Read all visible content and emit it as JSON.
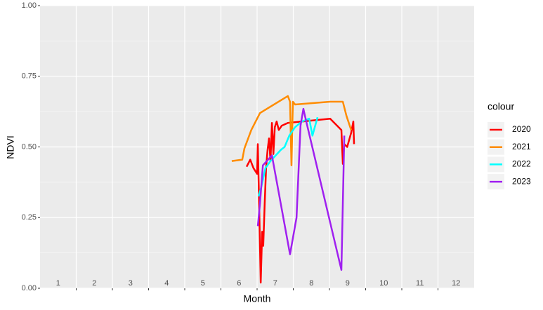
{
  "chart_data": {
    "type": "line",
    "x_label": "Month",
    "y_label": "NDVI",
    "legend_title": "colour",
    "xlim": [
      0.5,
      12.5
    ],
    "xticks": [
      1,
      2,
      3,
      4,
      5,
      6,
      7,
      8,
      9,
      10,
      11,
      12
    ],
    "xgrid": [
      1.5,
      2.5,
      3.5,
      4.5,
      5.5,
      6.5,
      7.5,
      8.5,
      9.5,
      10.5,
      11.5
    ],
    "ylim": [
      0,
      1
    ],
    "yticks": [
      {
        "value": 0,
        "label": "0.00"
      },
      {
        "value": 0.25,
        "label": "0.25"
      },
      {
        "value": 0.5,
        "label": "0.50"
      },
      {
        "value": 0.75,
        "label": "0.75"
      },
      {
        "value": 1,
        "label": "1.00"
      }
    ],
    "yminor": [
      0.125,
      0.375,
      0.625,
      0.875
    ],
    "grid": true,
    "series": [
      {
        "name": "2020",
        "color": "#ff0000",
        "x": [
          6.21,
          6.31,
          6.4,
          6.5,
          6.52,
          6.56,
          6.6,
          6.64,
          6.67,
          6.71,
          6.75,
          6.79,
          6.83,
          6.87,
          6.91,
          6.95,
          6.99,
          7.04,
          7.1,
          7.18,
          7.35,
          7.74,
          8.52,
          8.83,
          8.87,
          8.91,
          8.99,
          9.1,
          9.16,
          9.18
        ],
        "values": [
          0.43,
          0.455,
          0.425,
          0.405,
          0.51,
          0.275,
          0.02,
          0.2,
          0.15,
          0.3,
          0.43,
          0.49,
          0.53,
          0.45,
          0.585,
          0.475,
          0.57,
          0.59,
          0.56,
          0.575,
          0.585,
          0.59,
          0.6,
          0.56,
          0.44,
          0.51,
          0.5,
          0.55,
          0.59,
          0.51
        ]
      },
      {
        "name": "2021",
        "color": "#ff8c00",
        "x": [
          5.8,
          6.09,
          6.15,
          6.34,
          6.58,
          7.35,
          7.41,
          7.45,
          7.49,
          7.55,
          8.52,
          8.87,
          8.97,
          9.1
        ],
        "values": [
          0.45,
          0.455,
          0.495,
          0.56,
          0.62,
          0.68,
          0.66,
          0.435,
          0.66,
          0.65,
          0.66,
          0.66,
          0.61,
          0.56
        ]
      },
      {
        "name": "2022",
        "color": "#00ffff",
        "x": [
          6.54,
          6.62,
          6.73,
          6.87,
          7.16,
          7.26,
          7.39,
          7.55,
          7.74,
          7.94,
          8.03,
          8.17
        ],
        "values": [
          0.325,
          0.36,
          0.425,
          0.45,
          0.49,
          0.5,
          0.54,
          0.57,
          0.59,
          0.6,
          0.54,
          0.605
        ]
      },
      {
        "name": "2023",
        "color": "#a020f0",
        "x": [
          6.52,
          6.58,
          6.66,
          6.91,
          7.41,
          7.59,
          7.7,
          7.78,
          7.84,
          8.83,
          8.87,
          8.91
        ],
        "values": [
          0.22,
          0.3,
          0.435,
          0.47,
          0.12,
          0.25,
          0.575,
          0.635,
          0.6,
          0.065,
          0.3,
          0.54
        ]
      }
    ]
  }
}
